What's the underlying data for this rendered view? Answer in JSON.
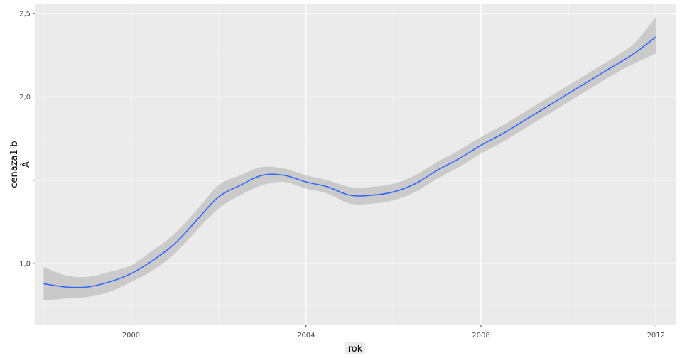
{
  "chart_data": {
    "type": "line",
    "xlabel": "rok",
    "ylabel": "cenaza1lb\nÂ",
    "xlim": [
      1997.8,
      2012.45
    ],
    "ylim": [
      0.63,
      2.56
    ],
    "x_ticks": [
      2000,
      2004,
      2008,
      2012
    ],
    "x_tick_labels": [
      "2000",
      "2004",
      "2008",
      "2012"
    ],
    "y_ticks": [
      1.0,
      1.5,
      2.0,
      2.5
    ],
    "y_tick_labels": [
      "1,0",
      "",
      "2,0",
      "2,5"
    ],
    "grid": true,
    "legend": "none",
    "colors": {
      "panel": "#ebebeb",
      "grid_major": "#ffffff",
      "line": "#3366ff",
      "ribbon": "#999999"
    },
    "series": [
      {
        "x": [
          1998.0,
          1998.5,
          1999.0,
          1999.5,
          2000.0,
          2000.5,
          2001.0,
          2001.5,
          2002.0,
          2002.5,
          2003.0,
          2003.5,
          2004.0,
          2004.5,
          2005.0,
          2005.5,
          2006.0,
          2006.5,
          2007.0,
          2007.5,
          2008.0,
          2008.5,
          2009.0,
          2009.5,
          2010.0,
          2010.5,
          2011.0,
          2011.5,
          2012.0
        ],
        "values": [
          0.88,
          0.86,
          0.86,
          0.89,
          0.94,
          1.02,
          1.12,
          1.26,
          1.4,
          1.47,
          1.53,
          1.53,
          1.49,
          1.46,
          1.41,
          1.41,
          1.43,
          1.48,
          1.56,
          1.63,
          1.71,
          1.78,
          1.86,
          1.94,
          2.02,
          2.1,
          2.18,
          2.26,
          2.36
        ],
        "lower": [
          0.78,
          0.79,
          0.8,
          0.83,
          0.89,
          0.96,
          1.06,
          1.2,
          1.33,
          1.41,
          1.47,
          1.49,
          1.45,
          1.42,
          1.36,
          1.36,
          1.38,
          1.43,
          1.51,
          1.58,
          1.66,
          1.73,
          1.81,
          1.89,
          1.97,
          2.05,
          2.13,
          2.2,
          2.26
        ],
        "upper": [
          0.98,
          0.93,
          0.92,
          0.95,
          0.99,
          1.08,
          1.18,
          1.32,
          1.47,
          1.53,
          1.58,
          1.57,
          1.53,
          1.5,
          1.46,
          1.46,
          1.48,
          1.53,
          1.61,
          1.68,
          1.76,
          1.83,
          1.91,
          1.99,
          2.07,
          2.15,
          2.23,
          2.32,
          2.48
        ]
      }
    ]
  }
}
